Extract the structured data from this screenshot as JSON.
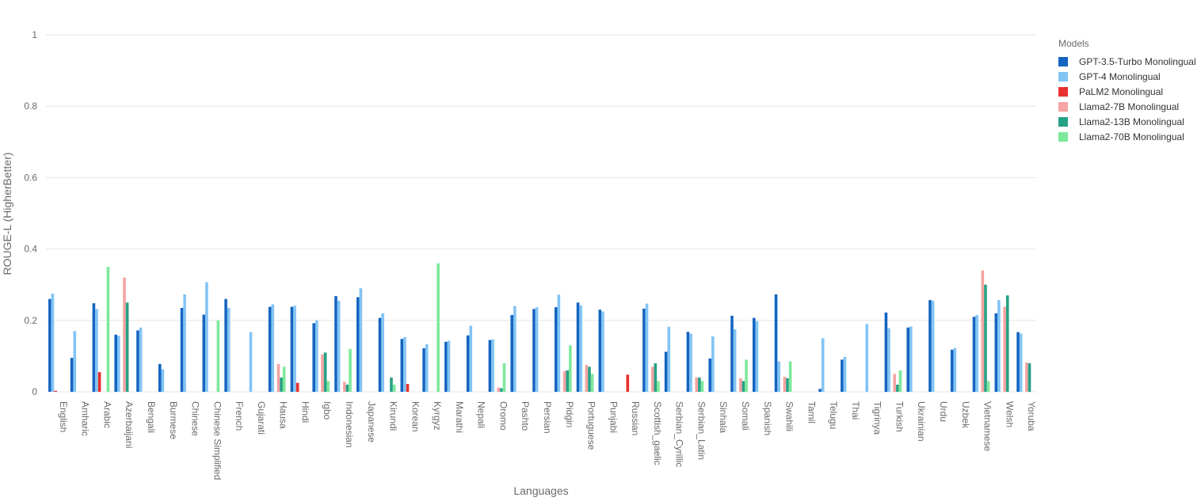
{
  "chart_data": {
    "type": "bar",
    "xlabel": "Languages",
    "ylabel": "ROUGE-L (HigherBetter)",
    "ylim": [
      0,
      1
    ],
    "yticks": [
      0,
      0.2,
      0.4,
      0.6,
      0.8,
      1
    ],
    "legend_title": "Models",
    "legend_position": "top-right",
    "grid": true,
    "categories": [
      "English",
      "Amharic",
      "Arabic",
      "Azerbaijani",
      "Bengali",
      "Burmese",
      "Chinese",
      "Chinese Simplified",
      "French",
      "Gujarati",
      "Hausa",
      "Hindi",
      "Igbo",
      "Indonesian",
      "Japanese",
      "Kirundi",
      "Korean",
      "Kyrgyz",
      "Marathi",
      "Nepali",
      "Oromo",
      "Pashto",
      "Persian",
      "Pidgin",
      "Portuguese",
      "Punjabi",
      "Russian",
      "Scottish_gaelic",
      "Serbian_Cyrillic",
      "Serbian_Latin",
      "Sinhala",
      "Somali",
      "Spanish",
      "Swahili",
      "Tamil",
      "Telugu",
      "Thai",
      "Tigrinya",
      "Turkish",
      "Ukrainian",
      "Urdu",
      "Uzbek",
      "Vietnamese",
      "Welsh",
      "Yoruba"
    ],
    "series": [
      {
        "name": "GPT-3.5-Turbo Monolingual",
        "color": "#1565c0",
        "values": [
          0.26,
          0.095,
          0.248,
          0.16,
          0.172,
          0.078,
          0.235,
          0.216,
          0.26,
          0,
          0.238,
          0.238,
          0.192,
          0.268,
          0.265,
          0.207,
          0.148,
          0.122,
          0.14,
          0.158,
          0.145,
          0.215,
          0.232,
          0.237,
          0.25,
          0.23,
          0,
          0.233,
          0.112,
          0.168,
          0.093,
          0.213,
          0.207,
          0.273,
          0,
          0.008,
          0.09,
          0,
          0.222,
          0.18,
          0.257,
          0.118,
          0.21,
          0.22,
          0.167
        ]
      },
      {
        "name": "GPT-4 Monolingual",
        "color": "#82c4f5",
        "values": [
          0.275,
          0.17,
          0.232,
          0.157,
          0.18,
          0.063,
          0.273,
          0.307,
          0.235,
          0.167,
          0.245,
          0.241,
          0.2,
          0.255,
          0.29,
          0.22,
          0.153,
          0.133,
          0.143,
          0.185,
          0.147,
          0.24,
          0.237,
          0.272,
          0.242,
          0.225,
          0,
          0.247,
          0.182,
          0.163,
          0.155,
          0.175,
          0.198,
          0.085,
          0,
          0.15,
          0.098,
          0.19,
          0.178,
          0.183,
          0.255,
          0.123,
          0.215,
          0.257,
          0.163
        ]
      },
      {
        "name": "PaLM2 Monolingual",
        "color": "#e8302e",
        "values": [
          0.003,
          0,
          0.055,
          0,
          0,
          0,
          0,
          0,
          0,
          0,
          0,
          0.025,
          0,
          0,
          0,
          0,
          0.022,
          0,
          0,
          0,
          0,
          0,
          0,
          0,
          0,
          0,
          0.048,
          0,
          0,
          0,
          0,
          0,
          0,
          0,
          0,
          0,
          0,
          0,
          0,
          0,
          0,
          0,
          0,
          0,
          0
        ]
      },
      {
        "name": "Llama2-7B Monolingual",
        "color": "#f6a3a3",
        "values": [
          0,
          0,
          0,
          0.32,
          0,
          0,
          0,
          0,
          0,
          0,
          0.078,
          0,
          0.105,
          0.028,
          0,
          0,
          0,
          0,
          0,
          0,
          0.012,
          0,
          0,
          0.058,
          0.075,
          0,
          0,
          0.07,
          0,
          0.04,
          0,
          0.038,
          0,
          0.042,
          0,
          0,
          0,
          0,
          0.05,
          0,
          0,
          0,
          0.34,
          0.238,
          0.082
        ]
      },
      {
        "name": "Llama2-13B Monolingual",
        "color": "#26a186",
        "values": [
          0,
          0,
          0,
          0.25,
          0,
          0,
          0,
          0,
          0,
          0,
          0.04,
          0,
          0.11,
          0.02,
          0,
          0.04,
          0,
          0,
          0,
          0,
          0.01,
          0,
          0,
          0.06,
          0.07,
          0,
          0,
          0.08,
          0,
          0.04,
          0,
          0.03,
          0,
          0.038,
          0,
          0,
          0,
          0,
          0.02,
          0,
          0,
          0,
          0.3,
          0.27,
          0.08
        ]
      },
      {
        "name": "Llama2-70B Monolingual",
        "color": "#7ee89b",
        "values": [
          0,
          0,
          0.35,
          0,
          0,
          0,
          0,
          0.2,
          0,
          0,
          0.07,
          0,
          0.03,
          0.12,
          0,
          0.02,
          0,
          0.36,
          0,
          0,
          0.08,
          0,
          0,
          0.13,
          0.05,
          0,
          0,
          0.03,
          0,
          0.03,
          0,
          0.09,
          0,
          0.085,
          0,
          0,
          0,
          0,
          0.06,
          0,
          0,
          0,
          0.03,
          0,
          0
        ]
      }
    ]
  }
}
